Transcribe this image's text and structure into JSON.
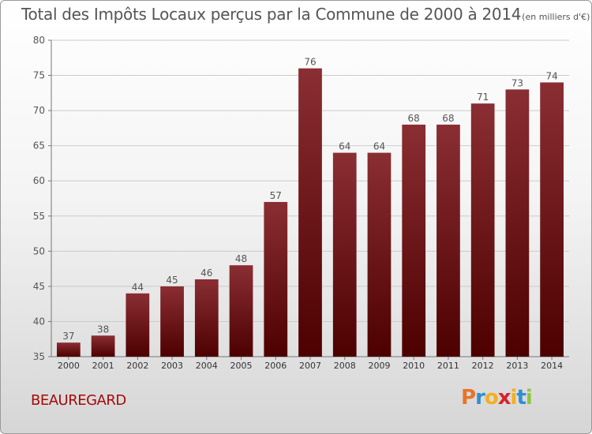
{
  "chart_data": {
    "type": "bar",
    "title": "Total des Impôts Locaux perçus par la Commune de 2000 à 2014",
    "unit_label": "(en milliers d'€)",
    "xlabel": "",
    "ylabel": "",
    "categories": [
      "2000",
      "2001",
      "2002",
      "2003",
      "2004",
      "2005",
      "2006",
      "2007",
      "2008",
      "2009",
      "2010",
      "2011",
      "2012",
      "2013",
      "2014"
    ],
    "values": [
      37,
      38,
      44,
      45,
      46,
      48,
      57,
      76,
      64,
      64,
      68,
      68,
      71,
      73,
      74
    ],
    "ylim": [
      35,
      80
    ],
    "yticks": [
      35,
      40,
      45,
      50,
      55,
      60,
      65,
      70,
      75,
      80
    ],
    "grid": true,
    "colors": {
      "bar_top": "#8a2e33",
      "bar_bottom": "#4d0000",
      "grid": "#cccccc",
      "text": "#555555"
    }
  },
  "footer": {
    "commune": "BEAUREGARD",
    "logo_letters": [
      "P",
      "r",
      "o",
      "x",
      "i",
      "t",
      "i"
    ],
    "logo_colors": [
      "#e8742a",
      "#2f8fd0",
      "#f2b01e",
      "#d8232a",
      "#f2b01e",
      "#2f8fd0",
      "#8dc63f"
    ]
  }
}
